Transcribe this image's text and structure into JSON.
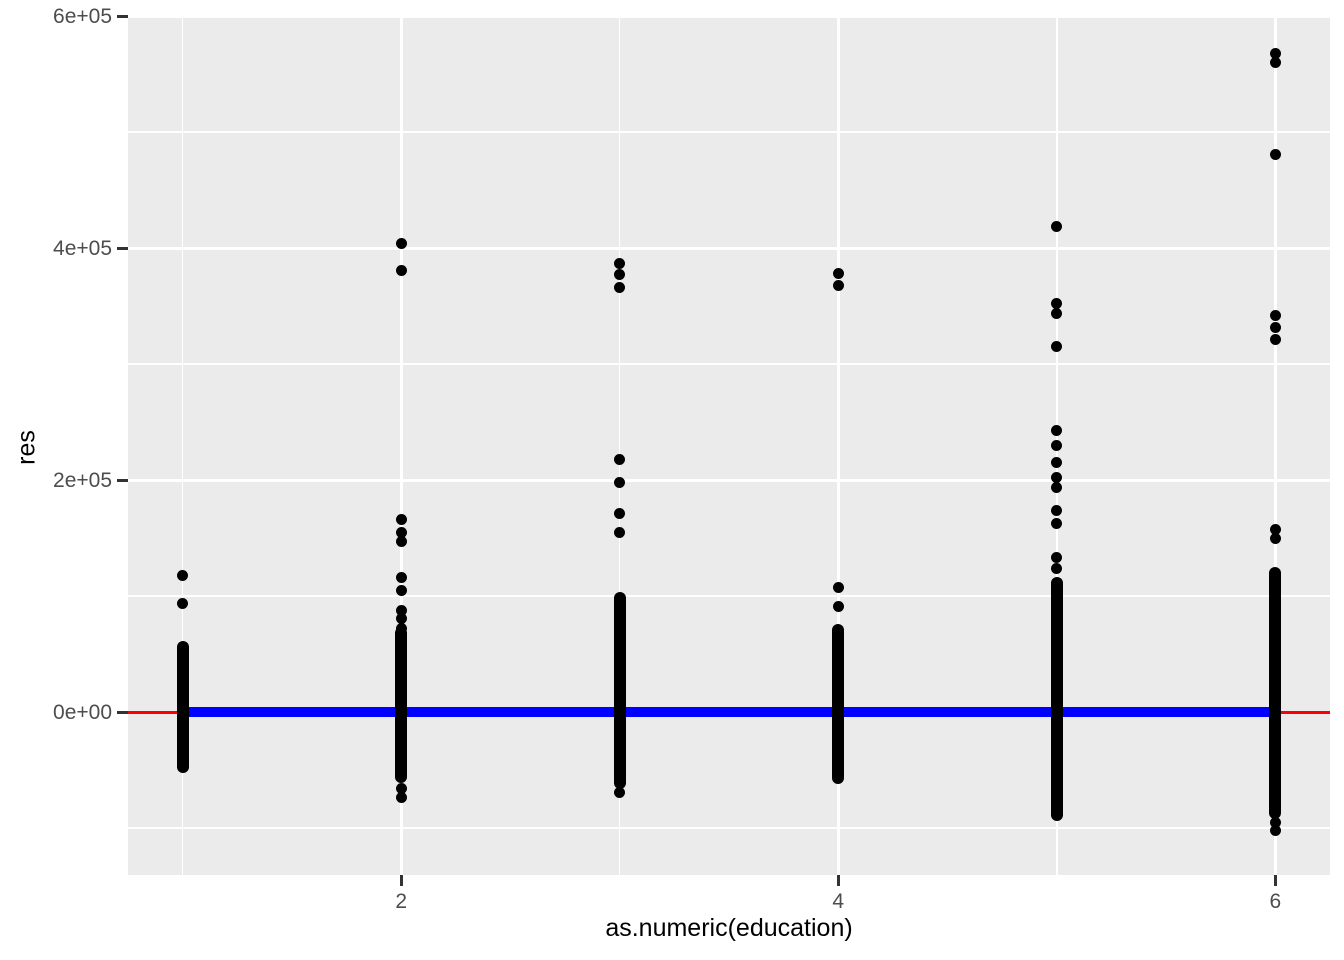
{
  "chart_data": {
    "type": "scatter",
    "title": "",
    "xlabel": "as.numeric(education)",
    "ylabel": "res",
    "panel_background": "#EBEBEB",
    "grid_color": "#ffffff",
    "point_color": "#000000",
    "hline_color": "#FF0000",
    "smooth_line_color": "#0000FF",
    "tick_text_color": "#4D4D4D",
    "xlim": [
      0.75,
      6.25
    ],
    "ylim": [
      -140500,
      598500
    ],
    "x_major_ticks": [
      {
        "label": "2",
        "value": 2
      },
      {
        "label": "4",
        "value": 4
      },
      {
        "label": "6",
        "value": 6
      }
    ],
    "x_minor_gridlines": [
      1,
      3,
      5
    ],
    "y_major_ticks": [
      {
        "label": "0e+00",
        "value": 0
      },
      {
        "label": "2e+05",
        "value": 200000
      },
      {
        "label": "4e+05",
        "value": 400000
      },
      {
        "label": "6e+05",
        "value": 600000
      }
    ],
    "y_minor_gridlines": [
      -100000,
      100000,
      300000,
      500000
    ],
    "reference_lines": [
      {
        "name": "hline-zero",
        "type": "hline",
        "y": 0,
        "color": "#FF0000",
        "x_from": 0.75,
        "x_to": 6.25,
        "thickness": 3
      },
      {
        "name": "fitted-line",
        "type": "hline",
        "y": 0,
        "color": "#0000FF",
        "x_from": 1,
        "x_to": 6,
        "thickness": 10
      }
    ],
    "clusters": [
      {
        "x": 1,
        "outliers": [
          118000,
          94000
        ],
        "strip": {
          "min": -47000,
          "max": 56000
        }
      },
      {
        "x": 2,
        "outliers": [
          404000,
          381000,
          166000,
          155000,
          147000,
          116000,
          105000,
          88000,
          81000,
          72000,
          -66000,
          -74000
        ],
        "strip": {
          "min": -56000,
          "max": 68000
        }
      },
      {
        "x": 3,
        "outliers": [
          387000,
          377000,
          366000,
          218000,
          198000,
          171000,
          155000,
          -69000
        ],
        "strip": {
          "min": -61000,
          "max": 98000
        }
      },
      {
        "x": 4,
        "outliers": [
          378000,
          368000,
          107000,
          91000
        ],
        "strip": {
          "min": -57000,
          "max": 71000
        }
      },
      {
        "x": 5,
        "outliers": [
          419000,
          352000,
          344000,
          315000,
          243000,
          230000,
          215000,
          202000,
          194000,
          174000,
          163000,
          133000,
          124000
        ],
        "strip": {
          "min": -89000,
          "max": 111000
        }
      },
      {
        "x": 6,
        "outliers": [
          568000,
          560000,
          481000,
          342000,
          332000,
          321000,
          157000,
          150000,
          -95000,
          -102000
        ],
        "strip": {
          "min": -87000,
          "max": 120000
        }
      }
    ]
  }
}
